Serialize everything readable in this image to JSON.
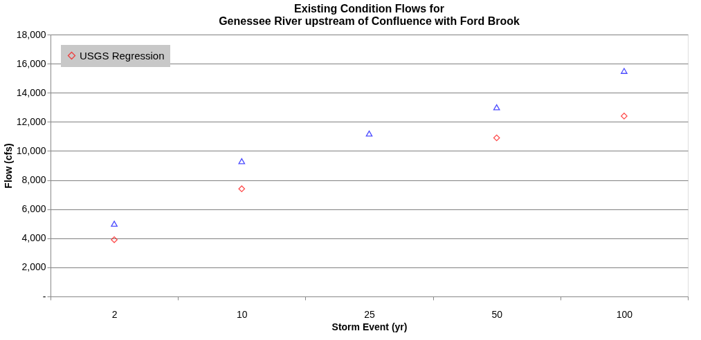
{
  "chart_data": {
    "type": "scatter",
    "title": "Existing Condition Flows for\nGenessee River upstream of Confluence with Ford Brook",
    "xlabel": "Storm Event (yr)",
    "ylabel": "Flow (cfs)",
    "categories": [
      "2",
      "10",
      "25",
      "50",
      "100"
    ],
    "series": [
      {
        "name": "USGS Regression",
        "color": "#ff0000",
        "marker": "diamond",
        "values": [
          3900,
          7400,
          null,
          10900,
          12400
        ]
      },
      {
        "color": "#0000ff",
        "marker": "triangle",
        "values": [
          5000,
          9300,
          11200,
          13000,
          15500
        ]
      }
    ],
    "ylim": [
      0,
      18000
    ],
    "yticks": [
      {
        "value": 0,
        "label": "-"
      },
      {
        "value": 2000,
        "label": "2,000"
      },
      {
        "value": 4000,
        "label": "4,000"
      },
      {
        "value": 6000,
        "label": "6,000"
      },
      {
        "value": 8000,
        "label": "8,000"
      },
      {
        "value": 10000,
        "label": "10,000"
      },
      {
        "value": 12000,
        "label": "12,000"
      },
      {
        "value": 14000,
        "label": "14,000"
      },
      {
        "value": 16000,
        "label": "16,000"
      },
      {
        "value": 18000,
        "label": "18,000"
      }
    ],
    "grid": "y",
    "legend": "top left"
  }
}
